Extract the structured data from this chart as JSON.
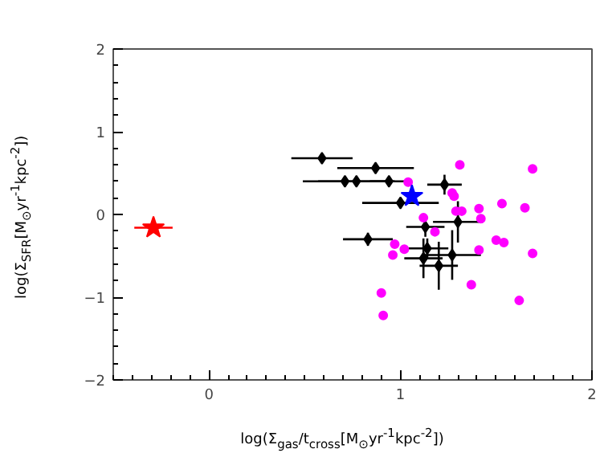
{
  "chart_data": {
    "type": "scatter",
    "xlabel": "log(Σ$_{gas}$/t$_{cross}$[M$_{⊙}$yr$^{-1}$kpc$^{-2}$])",
    "ylabel": "log(Σ$_{SFR}$[M$_{⊙}$yr$^{-1}$kpc$^{-2}$])",
    "xlim": [
      -0.5,
      2
    ],
    "ylim": [
      -2,
      2
    ],
    "xticks": [
      0,
      1,
      2
    ],
    "yticks": [
      -2,
      -1,
      0,
      1,
      2
    ],
    "grid": false,
    "series": [
      {
        "color": "#000000",
        "marker": "diamond",
        "x": [
          0.59,
          0.87,
          0.71,
          0.77,
          0.94,
          1.23,
          1.0,
          0.83,
          1.13,
          1.3,
          1.14,
          1.27,
          1.12,
          1.2
        ],
        "values": [
          0.68,
          0.56,
          0.4,
          0.4,
          0.4,
          0.36,
          0.14,
          -0.3,
          -0.15,
          -0.09,
          -0.41,
          -0.49,
          -0.53,
          -0.62
        ],
        "xerrors": [
          0.16,
          0.2,
          0.22,
          0.2,
          0.1,
          0.09,
          0.2,
          0.13,
          0.1,
          0.13,
          0.11,
          0.15,
          0.1,
          0.1
        ],
        "errors": [
          0.03,
          0.04,
          0.05,
          0.06,
          0.04,
          0.12,
          0.05,
          0.08,
          0.12,
          0.25,
          0.12,
          0.3,
          0.24,
          0.29
        ]
      },
      {
        "color": "#ff00ff",
        "marker": "circle",
        "x": [
          1.04,
          1.31,
          1.69,
          1.27,
          1.28,
          1.29,
          1.32,
          1.41,
          1.53,
          1.65,
          1.42,
          1.12,
          1.18,
          0.97,
          0.96,
          1.02,
          1.5,
          1.54,
          1.41,
          1.69,
          1.37,
          1.62,
          0.9,
          0.91
        ],
        "values": [
          0.39,
          0.6,
          0.55,
          0.26,
          0.22,
          0.04,
          0.04,
          0.07,
          0.13,
          0.08,
          -0.05,
          -0.04,
          -0.21,
          -0.36,
          -0.49,
          -0.42,
          -0.31,
          -0.34,
          -0.43,
          -0.47,
          -0.85,
          -1.04,
          -0.95,
          -1.22
        ]
      },
      {
        "color": "#0000ff",
        "marker": "star",
        "x": [
          1.06
        ],
        "values": [
          0.22
        ]
      },
      {
        "color": "#ff0000",
        "marker": "star",
        "x": [
          -0.29
        ],
        "values": [
          -0.16
        ],
        "xerrors": [
          0.1
        ]
      }
    ]
  }
}
